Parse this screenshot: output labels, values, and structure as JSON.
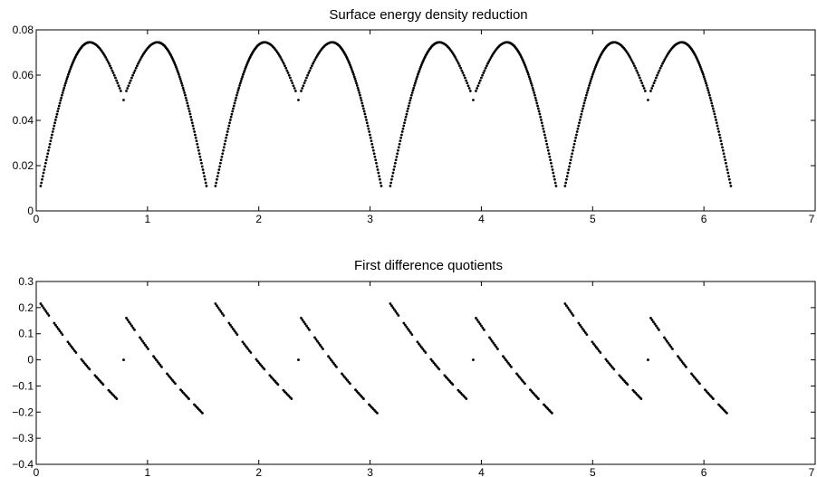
{
  "chart_data": [
    {
      "type": "scatter",
      "title": "Surface energy density reduction",
      "xlabel": "",
      "ylabel": "",
      "xlim": [
        0,
        7
      ],
      "ylim": [
        0,
        0.08
      ],
      "xticks": [
        "0",
        "1",
        "2",
        "3",
        "4",
        "5",
        "6",
        "7"
      ],
      "yticks": [
        "0",
        "0.02",
        "0.04",
        "0.06",
        "0.08"
      ],
      "grid": false,
      "series": [
        {
          "marker_color": "#000000",
          "x": [],
          "y": []
        }
      ]
    },
    {
      "type": "scatter",
      "title": "First difference quotients",
      "xlabel": "",
      "ylabel": "",
      "xlim": [
        0,
        7
      ],
      "ylim": [
        -0.4,
        0.3
      ],
      "xticks": [
        "0",
        "1",
        "2",
        "3",
        "4",
        "5",
        "6",
        "7"
      ],
      "yticks": [
        "−0.4",
        "−0.3",
        "−0.2",
        "−0.1",
        "0",
        "0.1",
        "0.2",
        "0.3"
      ],
      "grid": false,
      "series": [
        {
          "marker_color": "#000000",
          "x": [],
          "y": []
        }
      ]
    }
  ]
}
